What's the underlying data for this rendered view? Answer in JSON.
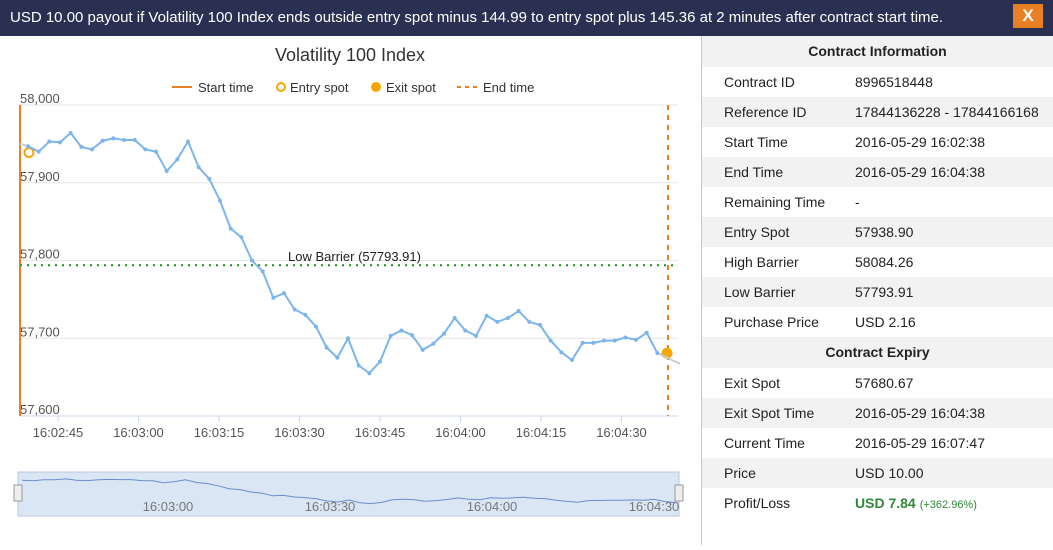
{
  "header": {
    "message": "USD 10.00 payout if Volatility 100 Index ends outside entry spot minus 144.99 to entry spot plus 145.36 at 2 minutes after contract start time.",
    "close_label": "X"
  },
  "chart_data": {
    "type": "line",
    "title": "Volatility 100 Index",
    "legend": [
      "Start time",
      "Entry spot",
      "Exit spot",
      "End time"
    ],
    "legend_position": "top",
    "ylim": [
      57600,
      58000
    ],
    "yticks": [
      "58,000",
      "57,900",
      "57,800",
      "57,700",
      "57,600"
    ],
    "xticks": [
      "16:02:45",
      "16:03:00",
      "16:03:15",
      "16:03:30",
      "16:03:45",
      "16:04:00",
      "16:04:15",
      "16:04:30"
    ],
    "series": [
      {
        "values": [
          57947,
          57940,
          57953,
          57952,
          57964,
          57946,
          57943,
          57954,
          57957,
          57955,
          57955,
          57943,
          57940,
          57915,
          57930,
          57953,
          57920,
          57905,
          57877,
          57841,
          57830,
          57800,
          57786,
          57752,
          57758,
          57737,
          57730,
          57715,
          57688,
          57675,
          57700,
          57665,
          57655,
          57670,
          57703,
          57710,
          57704,
          57685,
          57693,
          57706,
          57726,
          57710,
          57703,
          57729,
          57721,
          57726,
          57735,
          57721,
          57717,
          57697,
          57682,
          57672,
          57694,
          57694,
          57697,
          57697,
          57701,
          57698,
          57707,
          57681,
          57667
        ]
      }
    ],
    "low_barrier_label": "Low Barrier (57793.91)",
    "low_barrier": 57793.91,
    "entry_spot": 57938.9,
    "exit_spot": 57680.67,
    "navigator_labels": [
      "16:03:00",
      "16:03:30",
      "16:04:00",
      "16:04:30"
    ]
  },
  "contract_info": {
    "heading": "Contract Information",
    "rows": [
      {
        "label": "Contract ID",
        "value": "8996518448"
      },
      {
        "label": "Reference ID",
        "value": "17844136228 - 17844166168"
      },
      {
        "label": "Start Time",
        "value": "2016-05-29 16:02:38"
      },
      {
        "label": "End Time",
        "value": "2016-05-29 16:04:38"
      },
      {
        "label": "Remaining Time",
        "value": "-"
      },
      {
        "label": "Entry Spot",
        "value": "57938.90"
      },
      {
        "label": "High Barrier",
        "value": "58084.26"
      },
      {
        "label": "Low Barrier",
        "value": "57793.91"
      },
      {
        "label": "Purchase Price",
        "value": "USD 2.16"
      }
    ]
  },
  "contract_expiry": {
    "heading": "Contract Expiry",
    "rows": [
      {
        "label": "Exit Spot",
        "value": "57680.67"
      },
      {
        "label": "Exit Spot Time",
        "value": "2016-05-29 16:04:38"
      },
      {
        "label": "Current Time",
        "value": "2016-05-29 16:07:47"
      },
      {
        "label": "Price",
        "value": "USD 10.00"
      }
    ],
    "profit_label": "Profit/Loss",
    "profit_value": "USD 7.84",
    "profit_pct": "(+362.96%)"
  },
  "colors": {
    "header_bg": "#2a3052",
    "accent_orange": "#e98024",
    "series_line": "#7cb5ec",
    "barrier_green": "#1d8f1d",
    "profit_green": "#2e8836"
  }
}
